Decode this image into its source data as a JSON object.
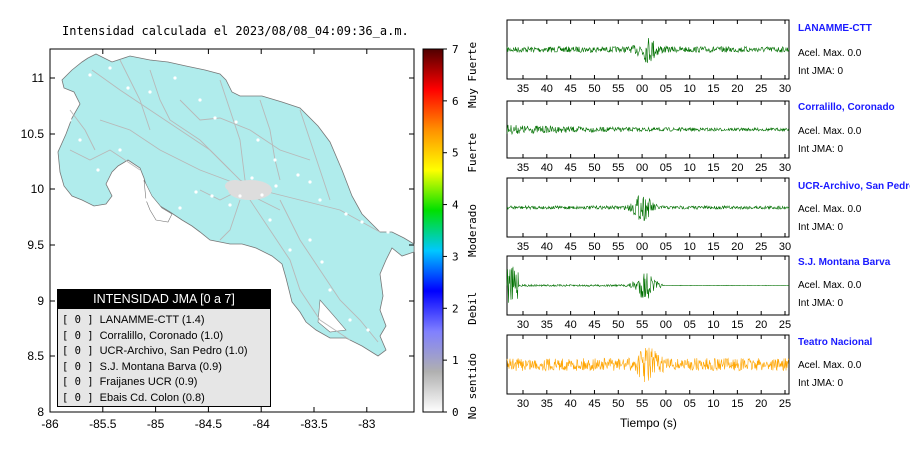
{
  "map": {
    "title": "Intensidad calculada el 2023/08/08_04:09:36_a.m.",
    "x_ticks": [
      "-86",
      "-85.5",
      "-85",
      "-84.5",
      "-84",
      "-83.5",
      "-83"
    ],
    "y_ticks": [
      "11",
      "10.5",
      "10",
      "9.5",
      "9",
      "8.5",
      "8"
    ],
    "colors": {
      "land": "#b0ecec",
      "sea": "#ffffff",
      "roads": "#b4b4b4",
      "border": "#888888"
    }
  },
  "colorbar": {
    "ticks": [
      "0",
      "1",
      "2",
      "3",
      "4",
      "5",
      "6",
      "7"
    ],
    "labels": [
      "No sentido",
      "Debil",
      "Moderado",
      "Fuerte",
      "Muy Fuerte"
    ],
    "stops": [
      "#ffffff",
      "#b0b0b0",
      "#8080ff",
      "#0000ff",
      "#00c8ff",
      "#00e000",
      "#ffff00",
      "#ff9000",
      "#ff0000",
      "#500000"
    ]
  },
  "legend": {
    "title": "INTENSIDAD JMA [0 a 7]",
    "items": [
      {
        "level": "[ 0 ]",
        "text": "LANAMME-CTT (1.4)"
      },
      {
        "level": "[ 0 ]",
        "text": "Corralillo, Coronado (1.0)"
      },
      {
        "level": "[ 0 ]",
        "text": "UCR-Archivo, San Pedro (1.0)"
      },
      {
        "level": "[ 0 ]",
        "text": "S.J. Montana Barva (0.9)"
      },
      {
        "level": "[ 0 ]",
        "text": "Fraijanes UCR (0.9)"
      },
      {
        "level": "[ 0 ]",
        "text": "Ebais Cd. Colon (0.8)"
      }
    ]
  },
  "waveforms": [
    {
      "name": "LANAMME-CTT",
      "acel": "Acel. Max. 0.0",
      "int": "Int JMA: 0",
      "color": "#007000",
      "ticks": [
        "35",
        "40",
        "45",
        "50",
        "55",
        "00",
        "05",
        "10",
        "15",
        "20",
        "25",
        "30"
      ]
    },
    {
      "name": "Corralillo, Coronado",
      "acel": "Acel. Max. 0.0",
      "int": "Int JMA: 0",
      "color": "#007000",
      "ticks": [
        "35",
        "40",
        "45",
        "50",
        "55",
        "00",
        "05",
        "10",
        "15",
        "20",
        "25",
        "30"
      ]
    },
    {
      "name": "UCR-Archivo, San Pedro",
      "acel": "Acel. Max. 0.0",
      "int": "Int JMA: 0",
      "color": "#007000",
      "ticks": [
        "35",
        "40",
        "45",
        "50",
        "55",
        "00",
        "05",
        "10",
        "15",
        "20",
        "25",
        "30"
      ]
    },
    {
      "name": "S.J. Montana Barva",
      "acel": "Acel. Max. 0.0",
      "int": "Int JMA: 0",
      "color": "#007000",
      "ticks": [
        "30",
        "35",
        "40",
        "45",
        "50",
        "55",
        "00",
        "05",
        "10",
        "15",
        "20",
        "25"
      ]
    },
    {
      "name": "Teatro Nacional",
      "acel": "Acel. Max. 0.0",
      "int": "Int JMA: 0",
      "color": "#ffa500",
      "ticks": [
        "30",
        "35",
        "40",
        "45",
        "50",
        "55",
        "00",
        "05",
        "10",
        "15",
        "20",
        "25"
      ]
    }
  ],
  "xlabel": "Tiempo (s)",
  "chart_data": [
    {
      "type": "heatmap",
      "title": "Intensidad calculada el 2023/08/08_04:09:36_a.m.",
      "xlabel": "",
      "ylabel": "",
      "xlim": [
        -86,
        -82.6
      ],
      "ylim": [
        8,
        11.3
      ],
      "colorbar_range": [
        0,
        7
      ],
      "colorbar_categories": [
        "No sentido",
        "Debil",
        "Moderado",
        "Fuerte",
        "Muy Fuerte"
      ],
      "grid": false,
      "legend_position": "bottom-left"
    },
    {
      "type": "line",
      "title": "",
      "xlabel": "Tiempo (s)",
      "ylabel": "",
      "series": [
        {
          "name": "LANAMME-CTT",
          "peak_at_tick": "00"
        },
        {
          "name": "Corralillo, Coronado",
          "peak_at_tick": "35"
        },
        {
          "name": "UCR-Archivo, San Pedro",
          "peak_at_tick": "00"
        },
        {
          "name": "S.J. Montana Barva",
          "peak_at_tick": "55"
        },
        {
          "name": "Teatro Nacional",
          "peak_at_tick": "00"
        }
      ]
    }
  ]
}
